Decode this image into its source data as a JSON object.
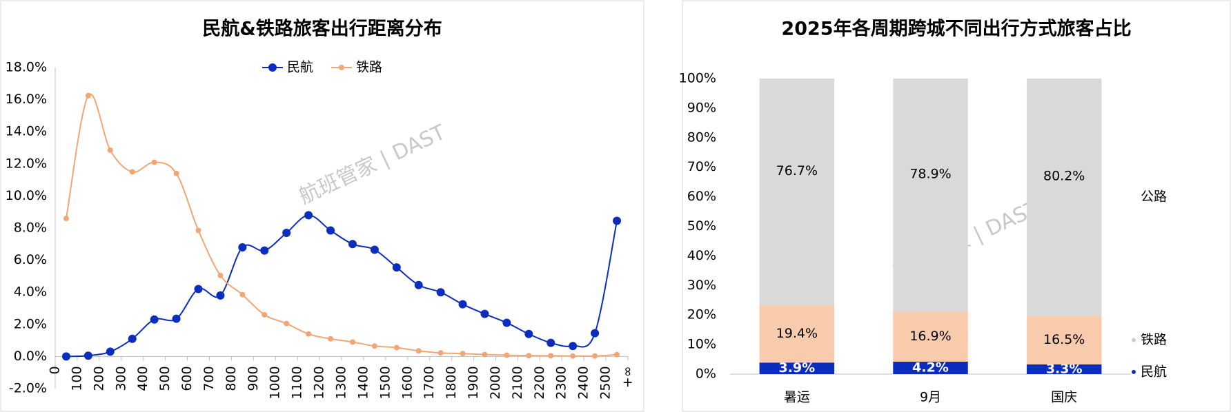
{
  "chart_data": [
    {
      "type": "line",
      "title": "民航&铁路旅客出行距离分布",
      "watermark": "航班管家 | DAST",
      "x": [
        50,
        150,
        250,
        350,
        450,
        550,
        650,
        750,
        850,
        950,
        1050,
        1150,
        1250,
        1350,
        1450,
        1550,
        1650,
        1750,
        1850,
        1950,
        2050,
        2150,
        2250,
        2350,
        2450,
        2550
      ],
      "xlim": [
        0,
        2600
      ],
      "xticks": [
        0,
        100,
        200,
        300,
        400,
        500,
        600,
        700,
        800,
        900,
        1000,
        1100,
        1200,
        1300,
        1400,
        1500,
        1600,
        1700,
        1800,
        1900,
        2000,
        2100,
        2200,
        2300,
        2400,
        2500,
        {
          "value": 2600,
          "label": "+∞"
        }
      ],
      "ylim": [
        -2,
        18
      ],
      "yticks": [
        {
          "value": -2,
          "label": "-2.0%"
        },
        {
          "value": 0,
          "label": "0.0%"
        },
        {
          "value": 2,
          "label": "2.0%"
        },
        {
          "value": 4,
          "label": "4.0%"
        },
        {
          "value": 6,
          "label": "6.0%"
        },
        {
          "value": 8,
          "label": "8.0%"
        },
        {
          "value": 10,
          "label": "10.0%"
        },
        {
          "value": 12,
          "label": "12.0%"
        },
        {
          "value": 14,
          "label": "14.0%"
        },
        {
          "value": 16,
          "label": "16.0%"
        },
        {
          "value": 18,
          "label": "18.0%"
        }
      ],
      "legend": "top",
      "series": [
        {
          "name": "民航",
          "color": "#0a2dbd",
          "values": [
            0.0,
            0.05,
            0.3,
            1.1,
            2.3,
            2.35,
            4.2,
            3.8,
            6.8,
            6.6,
            7.7,
            8.8,
            7.85,
            7.0,
            6.65,
            5.55,
            4.45,
            4.0,
            3.25,
            2.65,
            2.1,
            1.4,
            0.85,
            0.65,
            1.45,
            8.45
          ]
        },
        {
          "name": "铁路",
          "color": "#f4a574",
          "values": [
            8.6,
            16.25,
            12.85,
            11.5,
            12.1,
            11.4,
            7.85,
            5.05,
            3.85,
            2.6,
            2.05,
            1.4,
            1.1,
            0.9,
            0.65,
            0.55,
            0.35,
            0.22,
            0.18,
            0.12,
            0.08,
            0.05,
            0.04,
            0.03,
            0.03,
            0.12
          ]
        }
      ]
    },
    {
      "type": "stacked-bar",
      "title": "2025年各周期跨城不同出行方式旅客占比",
      "watermark": "航班管家 | DAST",
      "categories": [
        "暑运",
        "9月",
        "国庆"
      ],
      "ylim": [
        0,
        100
      ],
      "yticks": [
        {
          "value": 0,
          "label": "0%"
        },
        {
          "value": 10,
          "label": "10%"
        },
        {
          "value": 20,
          "label": "20%"
        },
        {
          "value": 30,
          "label": "30%"
        },
        {
          "value": 40,
          "label": "40%"
        },
        {
          "value": 50,
          "label": "50%"
        },
        {
          "value": 60,
          "label": "60%"
        },
        {
          "value": 70,
          "label": "70%"
        },
        {
          "value": 80,
          "label": "80%"
        },
        {
          "value": 90,
          "label": "90%"
        },
        {
          "value": 100,
          "label": "100%"
        }
      ],
      "legend": "right",
      "series": [
        {
          "name": "民航",
          "color": "#0a2dbd",
          "values": [
            3.9,
            4.2,
            3.3
          ],
          "value_labels": [
            "3.9%",
            "4.2%",
            "3.3%"
          ]
        },
        {
          "name": "铁路",
          "color": "#f8cbad",
          "values": [
            19.4,
            16.9,
            16.5
          ],
          "value_labels": [
            "19.4%",
            "16.9%",
            "16.5%"
          ]
        },
        {
          "name": "公路",
          "color": "#d9d9d9",
          "values": [
            76.7,
            78.9,
            80.2
          ],
          "value_labels": [
            "76.7%",
            "78.9%",
            "80.2%"
          ]
        }
      ]
    }
  ]
}
